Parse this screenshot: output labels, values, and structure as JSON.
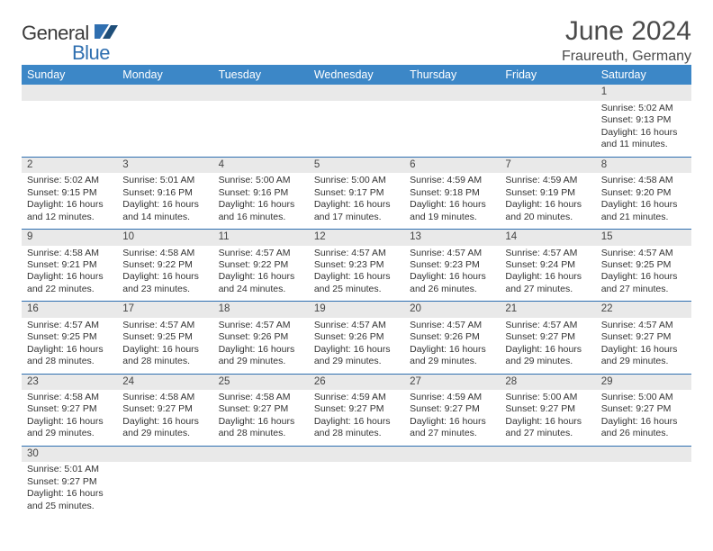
{
  "brand": {
    "word1": "General",
    "word2": "Blue"
  },
  "colors": {
    "headerBg": "#3c87c7",
    "rowDivider": "#2f6fb0",
    "dayNumBg": "#e9e9e9",
    "brandBlue": "#2f6fb0"
  },
  "title": "June 2024",
  "location": "Fraureuth, Germany",
  "weekdays": [
    "Sunday",
    "Monday",
    "Tuesday",
    "Wednesday",
    "Thursday",
    "Friday",
    "Saturday"
  ],
  "firstWeekdayIndex": 6,
  "daysInMonth": 30,
  "labels": {
    "sunrise": "Sunrise:",
    "sunset": "Sunset:",
    "daylightPrefix": "Daylight:",
    "daylightHoursWord": "hours",
    "daylightAnd": "and",
    "daylightMinSuffix": "minutes."
  },
  "days": {
    "1": {
      "sunrise": "5:02 AM",
      "sunset": "9:13 PM",
      "dlH": 16,
      "dlM": 11
    },
    "2": {
      "sunrise": "5:02 AM",
      "sunset": "9:15 PM",
      "dlH": 16,
      "dlM": 12
    },
    "3": {
      "sunrise": "5:01 AM",
      "sunset": "9:16 PM",
      "dlH": 16,
      "dlM": 14
    },
    "4": {
      "sunrise": "5:00 AM",
      "sunset": "9:16 PM",
      "dlH": 16,
      "dlM": 16
    },
    "5": {
      "sunrise": "5:00 AM",
      "sunset": "9:17 PM",
      "dlH": 16,
      "dlM": 17
    },
    "6": {
      "sunrise": "4:59 AM",
      "sunset": "9:18 PM",
      "dlH": 16,
      "dlM": 19
    },
    "7": {
      "sunrise": "4:59 AM",
      "sunset": "9:19 PM",
      "dlH": 16,
      "dlM": 20
    },
    "8": {
      "sunrise": "4:58 AM",
      "sunset": "9:20 PM",
      "dlH": 16,
      "dlM": 21
    },
    "9": {
      "sunrise": "4:58 AM",
      "sunset": "9:21 PM",
      "dlH": 16,
      "dlM": 22
    },
    "10": {
      "sunrise": "4:58 AM",
      "sunset": "9:22 PM",
      "dlH": 16,
      "dlM": 23
    },
    "11": {
      "sunrise": "4:57 AM",
      "sunset": "9:22 PM",
      "dlH": 16,
      "dlM": 24
    },
    "12": {
      "sunrise": "4:57 AM",
      "sunset": "9:23 PM",
      "dlH": 16,
      "dlM": 25
    },
    "13": {
      "sunrise": "4:57 AM",
      "sunset": "9:23 PM",
      "dlH": 16,
      "dlM": 26
    },
    "14": {
      "sunrise": "4:57 AM",
      "sunset": "9:24 PM",
      "dlH": 16,
      "dlM": 27
    },
    "15": {
      "sunrise": "4:57 AM",
      "sunset": "9:25 PM",
      "dlH": 16,
      "dlM": 27
    },
    "16": {
      "sunrise": "4:57 AM",
      "sunset": "9:25 PM",
      "dlH": 16,
      "dlM": 28
    },
    "17": {
      "sunrise": "4:57 AM",
      "sunset": "9:25 PM",
      "dlH": 16,
      "dlM": 28
    },
    "18": {
      "sunrise": "4:57 AM",
      "sunset": "9:26 PM",
      "dlH": 16,
      "dlM": 29
    },
    "19": {
      "sunrise": "4:57 AM",
      "sunset": "9:26 PM",
      "dlH": 16,
      "dlM": 29
    },
    "20": {
      "sunrise": "4:57 AM",
      "sunset": "9:26 PM",
      "dlH": 16,
      "dlM": 29
    },
    "21": {
      "sunrise": "4:57 AM",
      "sunset": "9:27 PM",
      "dlH": 16,
      "dlM": 29
    },
    "22": {
      "sunrise": "4:57 AM",
      "sunset": "9:27 PM",
      "dlH": 16,
      "dlM": 29
    },
    "23": {
      "sunrise": "4:58 AM",
      "sunset": "9:27 PM",
      "dlH": 16,
      "dlM": 29
    },
    "24": {
      "sunrise": "4:58 AM",
      "sunset": "9:27 PM",
      "dlH": 16,
      "dlM": 29
    },
    "25": {
      "sunrise": "4:58 AM",
      "sunset": "9:27 PM",
      "dlH": 16,
      "dlM": 28
    },
    "26": {
      "sunrise": "4:59 AM",
      "sunset": "9:27 PM",
      "dlH": 16,
      "dlM": 28
    },
    "27": {
      "sunrise": "4:59 AM",
      "sunset": "9:27 PM",
      "dlH": 16,
      "dlM": 27
    },
    "28": {
      "sunrise": "5:00 AM",
      "sunset": "9:27 PM",
      "dlH": 16,
      "dlM": 27
    },
    "29": {
      "sunrise": "5:00 AM",
      "sunset": "9:27 PM",
      "dlH": 16,
      "dlM": 26
    },
    "30": {
      "sunrise": "5:01 AM",
      "sunset": "9:27 PM",
      "dlH": 16,
      "dlM": 25
    }
  }
}
